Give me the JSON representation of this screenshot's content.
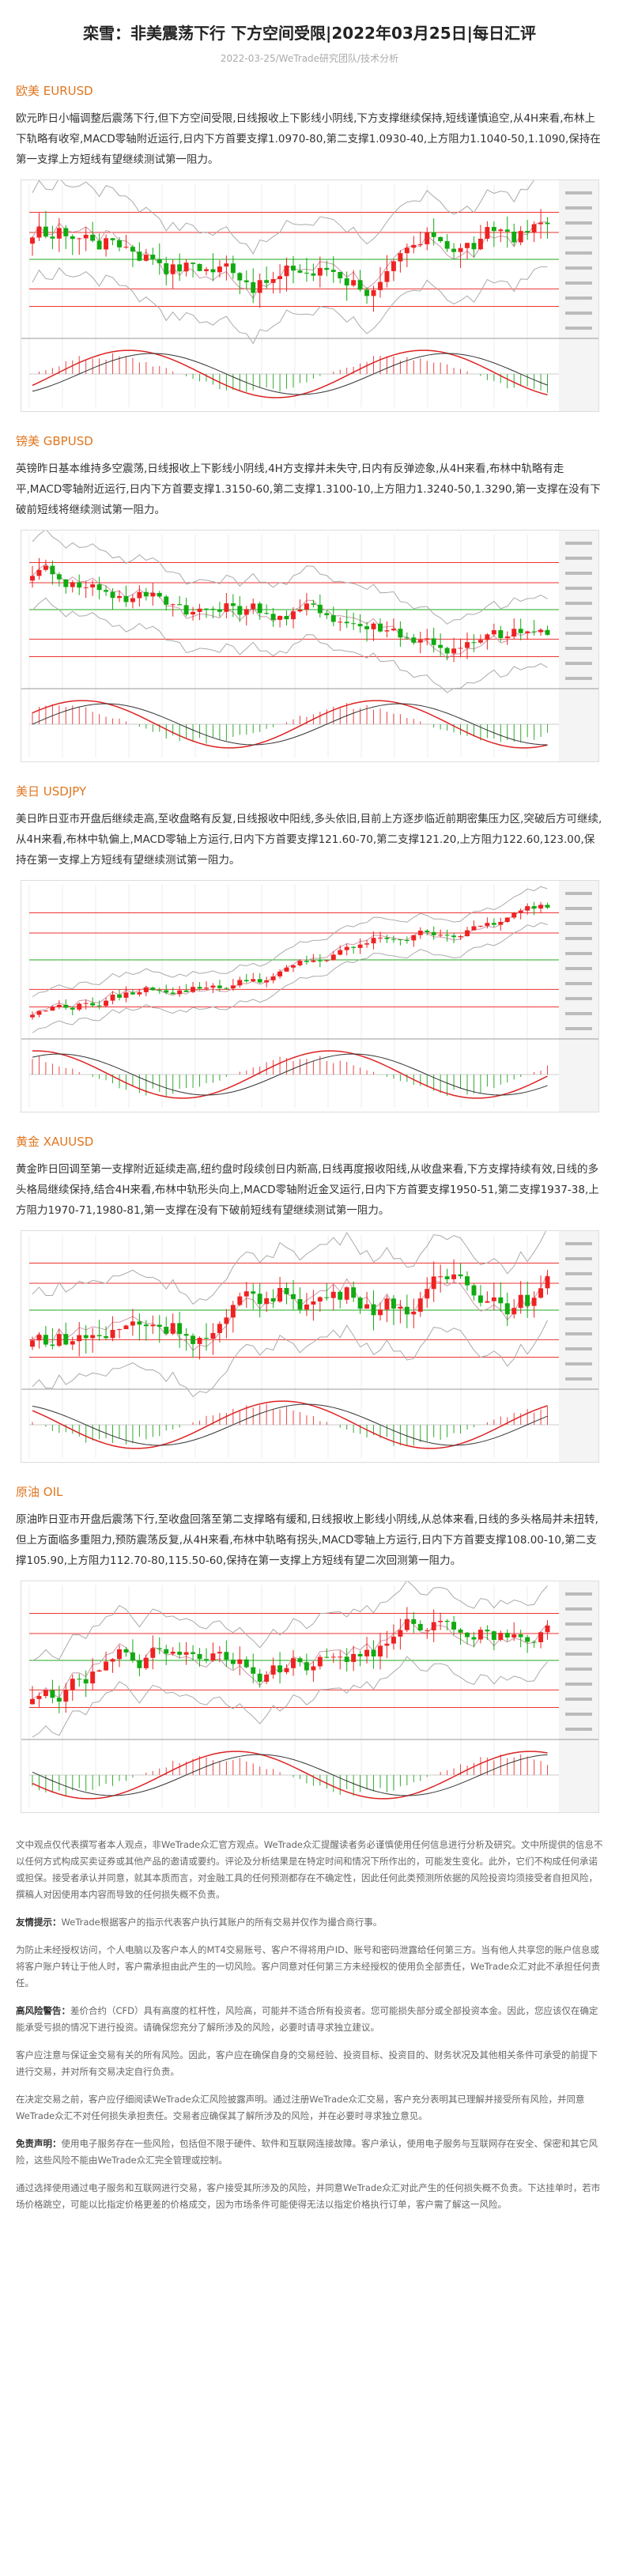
{
  "header": {
    "title": "栾雪：非美震荡下行 下方空间受限|2022年03月25日|每日汇评",
    "meta": "2022-03-25/WeTrade研究团队/技术分析"
  },
  "sections": [
    {
      "heading": "欧美 EURUSD",
      "text": "欧元昨日小幅调整后震荡下行,但下方空间受限,日线报收上下影线小阴线,下方支撑继续保持,短线谨慎追空,从4H来看,布林上下轨略有收窄,MACD零轴附近运行,日内下方首要支撑1.0970-80,第二支撑1.0930-40,上方阻力1.1040-50,1.1090,保持在第一支撑上方短线有望继续测试第一阻力。"
    },
    {
      "heading": "镑美 GBPUSD",
      "text": "英镑昨日基本维持多空震荡,日线报收上下影线小阴线,4H方支撑并未失守,日内有反弹迹象,从4H来看,布林中轨略有走平,MACD零轴附近运行,日内下方首要支撑1.3150-60,第二支撑1.3100-10,上方阻力1.3240-50,1.3290,第一支撑在没有下破前短线将继续测试第一阻力。"
    },
    {
      "heading": "美日 USDJPY",
      "text": "美日昨日亚市开盘后继续走高,至收盘略有反复,日线报收中阳线,多头依旧,目前上方逐步临近前期密集压力区,突破后方可继续,从4H来看,布林中轨偏上,MACD零轴上方运行,日内下方首要支撑121.60-70,第二支撑121.20,上方阻力122.60,123.00,保持在第一支撑上方短线有望继续测试第一阻力。"
    },
    {
      "heading": "黄金 XAUUSD",
      "text": "黄金昨日回调至第一支撑附近延续走高,纽约盘时段续创日内新高,日线再度报收阳线,从收盘来看,下方支撑持续有效,日线的多头格局继续保持,结合4H来看,布林中轨形头向上,MACD零轴附近金叉运行,日内下方首要支撑1950-51,第二支撑1937-38,上方阻力1970-71,1980-81,第一支撑在没有下破前短线有望继续测试第一阻力。"
    },
    {
      "heading": "原油 OIL",
      "text": "原油昨日亚市开盘后震荡下行,至收盘回落至第二支撑略有缓和,日线报收上影线小阴线,从总体来看,日线的多头格局并未扭转,但上方面临多重阻力,预防震荡反复,从4H来看,布林中轨略有拐头,MACD零轴上方运行,日内下方首要支撑108.00-10,第二支撑105.90,上方阻力112.70-80,115.50-60,保持在第一支撑上方短线有望二次回测第一阻力。"
    }
  ],
  "disclaimer": [
    {
      "text": "文中观点仅代表撰写者本人观点，非WeTrade众汇官方观点。WeTrade众汇提醒读者务必谨慎使用任何信息进行分析及研究。文中所提供的信息不以任何方式构成买卖证券或其他产品的邀请或要约。评论及分析结果是在特定时间和情况下所作出的，可能发生变化。此外，它们不构成任何承诺或担保。接受者承认并同意，就其本质而言，对金融工具的任何预测都存在不确定性，因此任何此类预测所依据的风险投资均须接受者自担风险，撰稿人对因使用本内容而导致的任何损失概不负责。"
    },
    {
      "label": "友情提示：",
      "text": "WeTrade根据客户的指示代表客户执行其账户的所有交易并仅作为撮合商行事。"
    },
    {
      "text": "为防止未经授权访问，个人电脑以及客户本人的MT4交易账号、客户不得将用户ID、账号和密码泄露给任何第三方。当有他人共享您的账户信息或将客户账户转让于他人时，客户需承担由此产生的一切风险。客户同意对任何第三方未经授权的使用负全部责任，WeTrade众汇对此不承担任何责任。"
    },
    {
      "label": "高风险警告：",
      "text": "差价合约（CFD）具有高度的杠杆性，风险高，可能并不适合所有投资者。您可能损失部分或全部投资本金。因此，您应该仅在确定能承受亏损的情况下进行投资。请确保您充分了解所涉及的风险，必要时请寻求独立建议。"
    },
    {
      "text": "客户应注意与保证金交易有关的所有风险。因此，客户应在确保自身的交易经验、投资目标、投资目的、财务状况及其他相关条件可承受的前提下进行交易，并对所有交易决定自行负责。"
    },
    {
      "text": "在决定交易之前，客户应仔细阅读WeTrade众汇风险披露声明。通过注册WeTrade众汇交易，客户充分表明其已理解并接受所有风险，并同意WeTrade众汇不对任何损失承担责任。交易者应确保其了解所涉及的风险，并在必要时寻求独立意见。"
    },
    {
      "label": "免责声明：",
      "text": "使用电子服务存在一些风险，包括但不限于硬件、软件和互联网连接故障。客户承认，使用电子服务与互联网存在安全、保密和其它风险，这些风险不能由WeTrade众汇完全管理或控制。"
    },
    {
      "text": "通过选择使用通过电子服务和互联网进行交易，客户接受其所涉及的风险，并同意WeTrade众汇对此产生的任何损失概不负责。下达挂单时，若市场价格跳空，可能以比指定价格更差的价格成交，因为市场条件可能使得无法以指定价格执行订单，客户需了解这一风险。"
    }
  ]
}
